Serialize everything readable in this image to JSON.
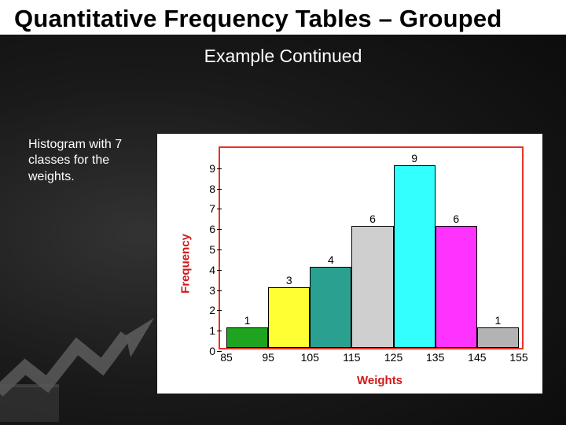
{
  "title": "Quantitative Frequency Tables – Grouped",
  "subtitle": "Example Continued",
  "caption": "Histogram with 7 classes for the weights.",
  "chart": {
    "type": "bar",
    "xlabel": "Weights",
    "ylabel": "Frequency",
    "xlabel_color": "#d31818",
    "ylabel_color": "#d31818",
    "frame_color": "#e53328",
    "background_color": "#ffffff",
    "x_ticks": [
      85,
      95,
      105,
      115,
      125,
      135,
      145,
      155
    ],
    "y_ticks": [
      0,
      1,
      2,
      3,
      4,
      5,
      6,
      7,
      8,
      9
    ],
    "y_max": 10,
    "bars": [
      {
        "value": 1,
        "color": "#1fa41f"
      },
      {
        "value": 3,
        "color": "#ffff33"
      },
      {
        "value": 4,
        "color": "#2aa190"
      },
      {
        "value": 6,
        "color": "#cfcfcf"
      },
      {
        "value": 9,
        "color": "#33ffff"
      },
      {
        "value": 6,
        "color": "#ff33ff"
      },
      {
        "value": 1,
        "color": "#b3b3b3"
      }
    ],
    "label_fontsize": 14,
    "axis_label_fontsize": 15
  }
}
